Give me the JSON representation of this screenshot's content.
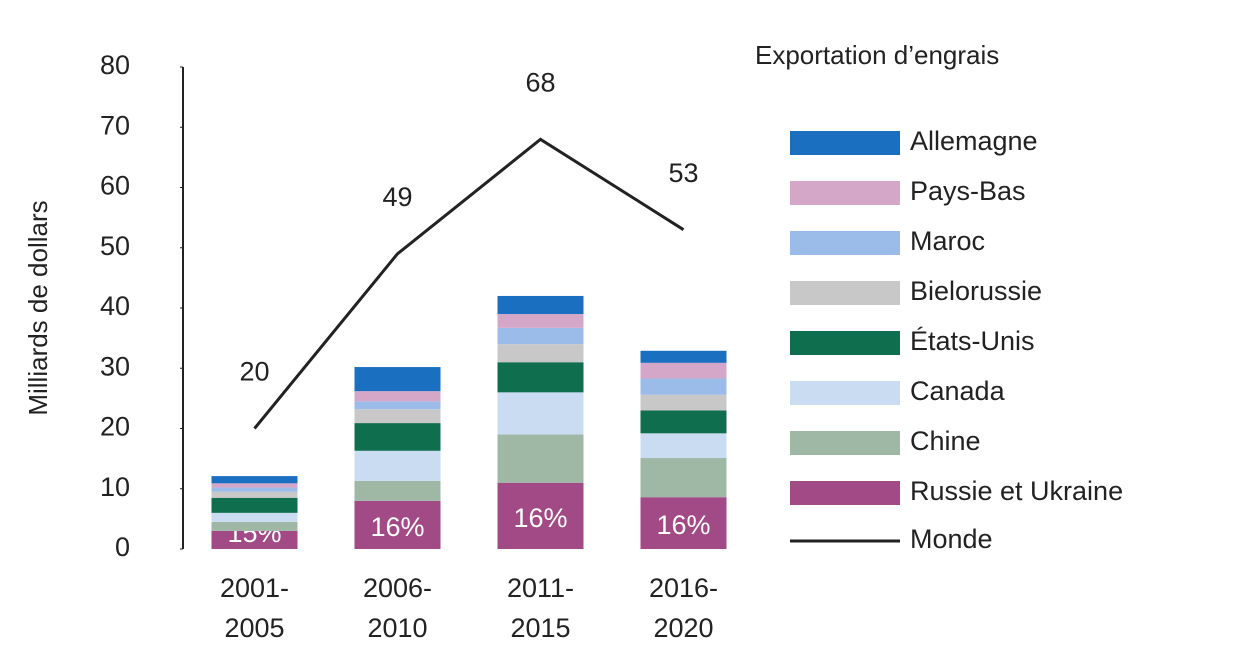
{
  "chart_data": {
    "type": "bar",
    "stacked": true,
    "legend_title": "Exportation d’engrais",
    "y_label": "Milliards de dollars",
    "categories": [
      [
        "2001-",
        "2005"
      ],
      [
        "2006-",
        "2010"
      ],
      [
        "2011-",
        "2015"
      ],
      [
        "2016-",
        "2020"
      ]
    ],
    "ylim": [
      0,
      80
    ],
    "yticks": [
      0,
      10,
      20,
      30,
      40,
      50,
      60,
      70,
      80
    ],
    "grid": false,
    "series": [
      {
        "name": "Russie et Ukraine",
        "color": "#a24a86",
        "values": [
          3,
          8,
          11,
          8.6
        ],
        "share_labels": [
          "15%",
          "16%",
          "16%",
          "16%"
        ]
      },
      {
        "name": "Chine",
        "color": "#9fb8a6",
        "values": [
          1.5,
          3.3,
          8,
          6.5
        ]
      },
      {
        "name": "Canada",
        "color": "#c9dcf2",
        "values": [
          1.5,
          5,
          7,
          4.1
        ]
      },
      {
        "name": "États-Unis",
        "color": "#0f6e4e",
        "values": [
          2.5,
          4.6,
          5,
          3.8
        ]
      },
      {
        "name": "Bielorussie",
        "color": "#c8c8c8",
        "values": [
          1,
          2.3,
          3,
          2.6
        ]
      },
      {
        "name": "Maroc",
        "color": "#9bbbe8",
        "values": [
          0.7,
          1.3,
          2.7,
          2.7
        ]
      },
      {
        "name": "Pays-Bas",
        "color": "#d4a7c8",
        "values": [
          0.7,
          1.7,
          2.3,
          2.6
        ]
      },
      {
        "name": "Allemagne",
        "color": "#1a6fc0",
        "values": [
          1.2,
          4,
          3,
          2
        ]
      }
    ],
    "line_series": {
      "name": "Monde",
      "color": "#222222",
      "values": [
        20,
        49,
        68,
        53
      ]
    }
  }
}
